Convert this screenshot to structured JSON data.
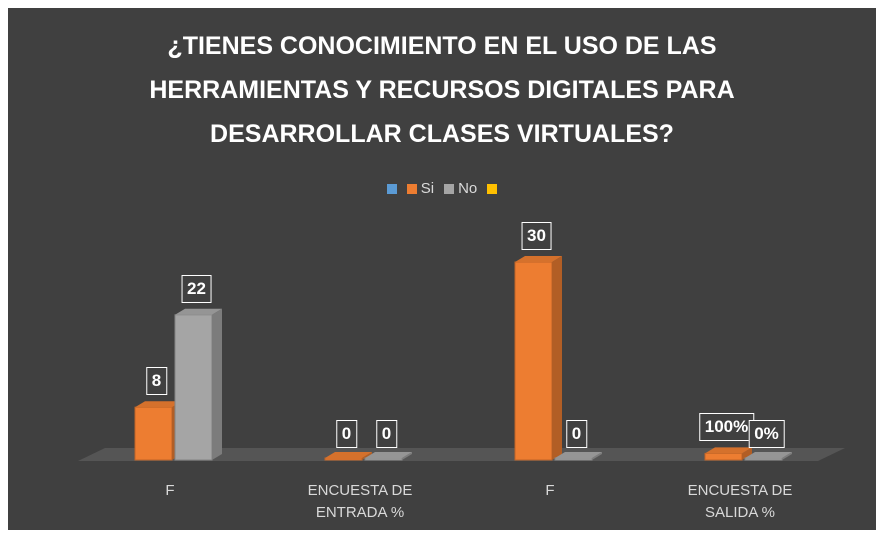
{
  "chart_data": {
    "type": "bar3d",
    "title": "¿TIENES CONOCIMIENTO EN EL USO DE LAS HERRAMIENTAS Y RECURSOS DIGITALES PARA DESARROLLAR CLASES VIRTUALES?",
    "categories": [
      "F",
      "ENCUESTA DE ENTRADA %",
      "F",
      "ENCUESTA DE SALIDA %"
    ],
    "series": [
      {
        "name": null,
        "color": "#5b9bd5",
        "values": [
          null,
          null,
          null,
          null
        ]
      },
      {
        "name": "Si",
        "color": "#ed7d31",
        "values": [
          8,
          0,
          30,
          1
        ],
        "value_labels": [
          "8",
          "0",
          "30",
          "100%"
        ]
      },
      {
        "name": "No",
        "color": "#a5a5a5",
        "values": [
          22,
          0,
          0,
          0
        ],
        "value_labels": [
          "22",
          "0",
          "0",
          "0%"
        ]
      },
      {
        "name": null,
        "color": "#ffc000",
        "values": [
          null,
          null,
          null,
          null
        ]
      }
    ],
    "legend": "top"
  }
}
